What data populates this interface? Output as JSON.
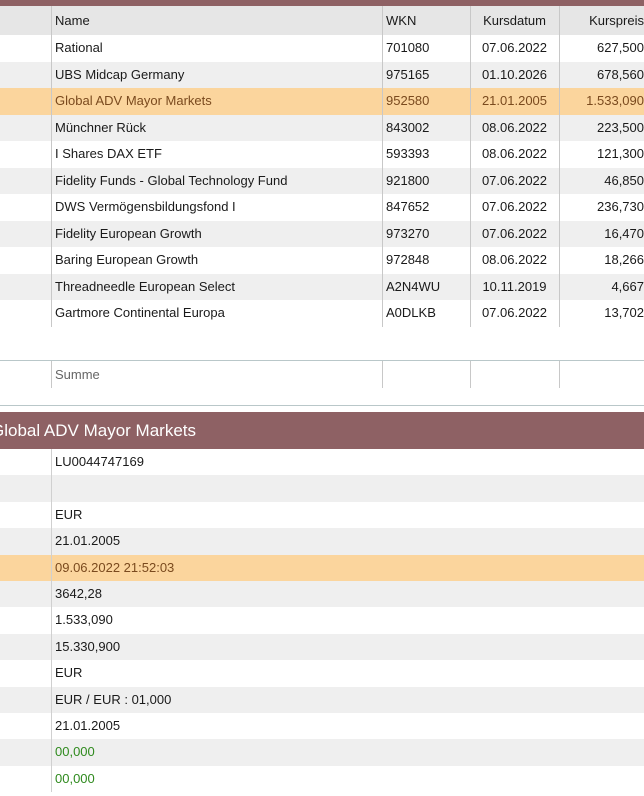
{
  "table": {
    "columns": {
      "name": "Name",
      "wkn": "WKN",
      "kursdatum": "Kursdatum",
      "kurspreis": "Kurspreis"
    },
    "rows": [
      {
        "name": "Rational",
        "wkn": "701080",
        "kursdatum": "07.06.2022",
        "kurspreis": "627,500"
      },
      {
        "name": "UBS Midcap Germany",
        "wkn": "975165",
        "kursdatum": "01.10.2026",
        "kurspreis": "678,560"
      },
      {
        "name": "Global ADV Mayor Markets",
        "wkn": "952580",
        "kursdatum": "21.01.2005",
        "kurspreis": "1.533,090",
        "selected": true
      },
      {
        "name": "Münchner Rück",
        "wkn": "843002",
        "kursdatum": "08.06.2022",
        "kurspreis": "223,500"
      },
      {
        "name": "I Shares DAX ETF",
        "wkn": "593393",
        "kursdatum": "08.06.2022",
        "kurspreis": "121,300"
      },
      {
        "name": "Fidelity Funds - Global Technology Fund",
        "wkn": "921800",
        "kursdatum": "07.06.2022",
        "kurspreis": "46,850"
      },
      {
        "name": "DWS Vermögensbildungsfond I",
        "wkn": "847652",
        "kursdatum": "07.06.2022",
        "kurspreis": "236,730"
      },
      {
        "name": "Fidelity European Growth",
        "wkn": "973270",
        "kursdatum": "07.06.2022",
        "kurspreis": "16,470"
      },
      {
        "name": "Baring European Growth",
        "wkn": "972848",
        "kursdatum": "08.06.2022",
        "kurspreis": "18,266"
      },
      {
        "name": "Threadneedle European Select",
        "wkn": "A2N4WU",
        "kursdatum": "10.11.2019",
        "kurspreis": "4,667"
      },
      {
        "name": "Gartmore Continental Europa",
        "wkn": "A0DLKB",
        "kursdatum": "07.06.2022",
        "kurspreis": "13,702"
      }
    ],
    "sum_label": "Summe"
  },
  "detail": {
    "title": "Global ADV Mayor Markets",
    "values": [
      {
        "text": "LU0044747169"
      },
      {
        "text": ""
      },
      {
        "text": "EUR"
      },
      {
        "text": "21.01.2005"
      },
      {
        "text": "09.06.2022 21:52:03",
        "selected": true
      },
      {
        "text": "3642,28"
      },
      {
        "text": "1.533,090"
      },
      {
        "text": "15.330,900"
      },
      {
        "text": "EUR"
      },
      {
        "text": "EUR / EUR : 01,000"
      },
      {
        "text": "21.01.2005"
      },
      {
        "text": "00,000",
        "green": true
      },
      {
        "text": "00,000",
        "green": true
      }
    ]
  },
  "colors": {
    "accent": "#8e6164",
    "selected_row": "#fbd59d",
    "alt_row": "#efefef",
    "positive_value": "#2f8a1e"
  }
}
